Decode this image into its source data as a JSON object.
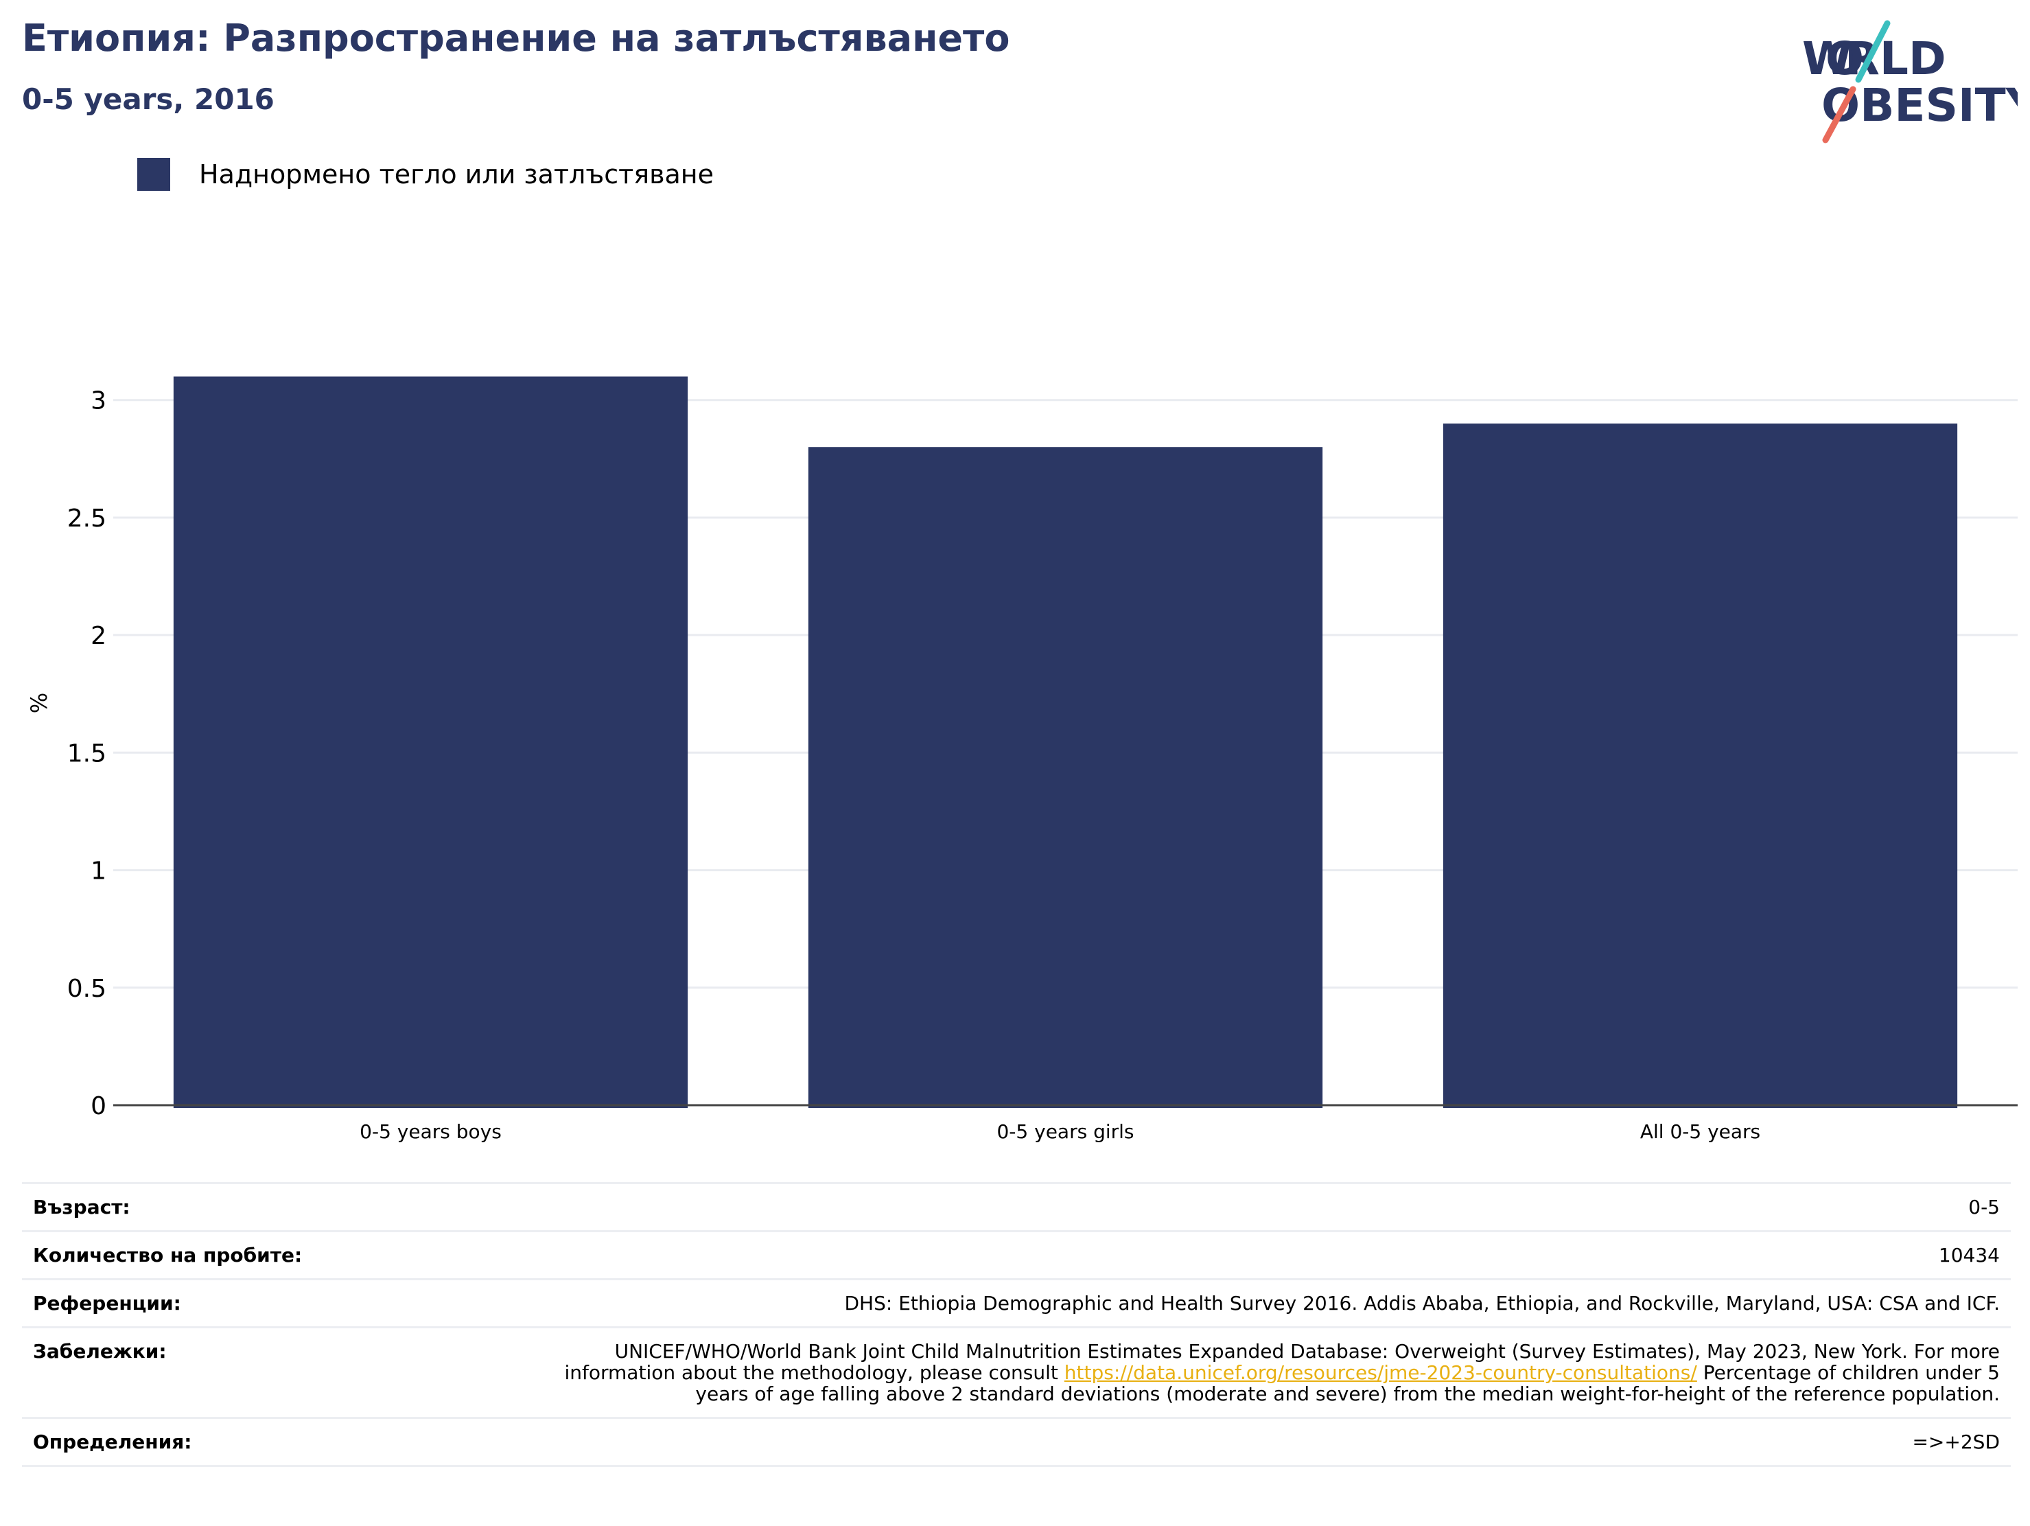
{
  "header": {
    "title": "Етиопия: Разпространение на затлъстяването",
    "subtitle": "0-5 years, 2016"
  },
  "logo": {
    "line1": "WORLD",
    "line2": "OBESITY",
    "colors": {
      "text": "#2b3764",
      "slash_top": "#3bbfbf",
      "slash_bottom": "#e96a5a"
    }
  },
  "legend": {
    "label": "Наднормено тегло или затлъстяване",
    "color": "#2b3764"
  },
  "chart_data": {
    "type": "bar",
    "categories": [
      "0-5 years boys",
      "0-5 years girls",
      "All 0-5 years"
    ],
    "series": [
      {
        "name": "Наднормено тегло или затлъстяване",
        "values": [
          3.1,
          2.8,
          2.9
        ]
      }
    ],
    "ylabel": "%",
    "xlabel": "",
    "ylim": [
      0,
      3.3
    ],
    "yticks": [
      "0",
      "0.5",
      "1",
      "1.5",
      "2",
      "2.5",
      "3"
    ],
    "grid": true,
    "legend_position": "top-left",
    "bar_color": "#2b3764"
  },
  "info": {
    "age_label": "Възраст:",
    "age_value": "0-5",
    "sample_label": "Количество на пробите:",
    "sample_value": "10434",
    "refs_label": "Референции:",
    "refs_value": "DHS: Ethiopia Demographic and Health Survey 2016. Addis Ababa, Ethiopia, and Rockville, Maryland, USA: CSA and ICF.",
    "notes_label": "Забележки:",
    "notes_before": "UNICEF/WHO/World Bank Joint Child Malnutrition Estimates Expanded Database: Overweight (Survey Estimates), May 2023, New York. For more information about the methodology, please consult ",
    "notes_link": "https://data.unicef.org/resources/jme-2023-country-consultations/",
    "notes_after": " Percentage of children under 5 years of age falling above 2 standard deviations (moderate and severe) from the median weight-for-height of the reference population.",
    "defs_label": "Определения:",
    "defs_value": "=>+2SD"
  }
}
